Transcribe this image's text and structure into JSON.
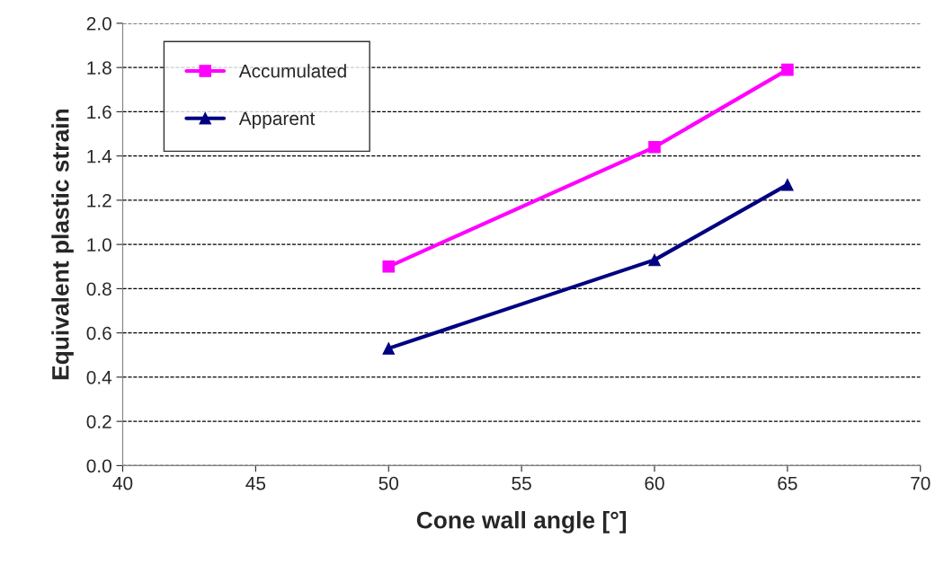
{
  "chart_data": {
    "type": "line",
    "xlabel": "Cone wall angle [°]",
    "ylabel": "Equivalent plastic strain",
    "series": [
      {
        "name": "Accumulated",
        "color": "#ff00ff",
        "marker": "square",
        "x": [
          50,
          60,
          65
        ],
        "values": [
          0.9,
          1.44,
          1.79
        ]
      },
      {
        "name": "Apparent",
        "color": "#000080",
        "marker": "triangle",
        "x": [
          50,
          60,
          65
        ],
        "values": [
          0.53,
          0.93,
          1.27
        ]
      }
    ],
    "xlim": [
      40,
      70
    ],
    "xticks": [
      40,
      45,
      50,
      55,
      60,
      65,
      70
    ],
    "ylim": [
      0,
      2.0
    ],
    "yticks": [
      {
        "value": 0,
        "label": "0.0"
      },
      {
        "value": 0.2,
        "label": "0.2"
      },
      {
        "value": 0.4,
        "label": "0.4"
      },
      {
        "value": 0.6,
        "label": "0.6"
      },
      {
        "value": 0.8,
        "label": "0.8"
      },
      {
        "value": 1.0,
        "label": "1.0"
      },
      {
        "value": 1.2,
        "label": "1.2"
      },
      {
        "value": 1.4,
        "label": "1.4"
      },
      {
        "value": 1.6,
        "label": "1.6"
      },
      {
        "value": 1.8,
        "label": "1.8"
      },
      {
        "value": 2.0,
        "label": "2.0"
      }
    ],
    "grid": "y",
    "legend": "top left",
    "line_style": "solid"
  }
}
